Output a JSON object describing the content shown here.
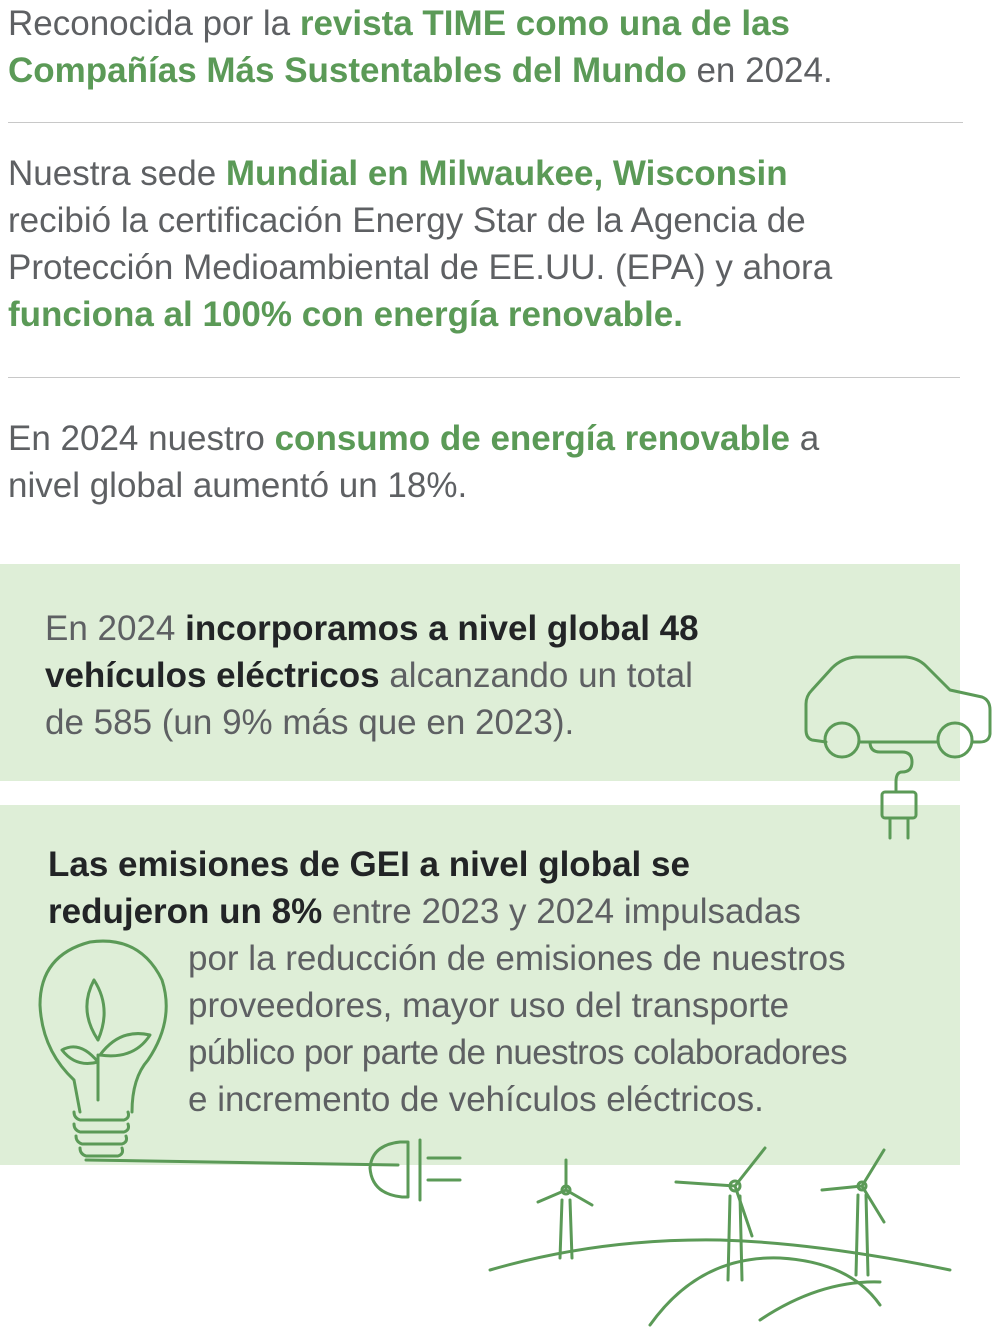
{
  "p1": {
    "a": "Reconocida por la ",
    "b": "revista TIME como una de las",
    "c": "Compañías Más Sustentables del Mundo",
    "d": " en 2024."
  },
  "p2": {
    "a": "Nuestra sede ",
    "b": "Mundial en Milwaukee, Wisconsin",
    "c": "recibió la certificación Energy Star de la Agencia de",
    "d": "Protección Medioambiental de EE.UU. (EPA) y ahora",
    "e": "funciona al 100% con energía renovable."
  },
  "p3": {
    "a": "En 2024 nuestro ",
    "b": "consumo de energía renovable",
    "c": " a",
    "d": "nivel global aumentó un 18%."
  },
  "box1": {
    "a": "En 2024 ",
    "b": "incorporamos a nivel global 48",
    "c": "vehículos eléctricos",
    "d": " alcanzando un total",
    "e": "de 585 (un 9% más que en 2023)."
  },
  "box2": {
    "a": "Las emisiones de GEI a nivel global se",
    "b": "redujeron un 8%",
    "c": " entre 2023 y 2024 impulsadas",
    "d": "por la reducción de emisiones de nuestros",
    "e": "proveedores, mayor uso del transporte",
    "f": "público por parte de nuestros colaboradores",
    "g": "e incremento de vehículos eléctricos."
  },
  "icons": [
    "electric-car-icon",
    "plug-icon",
    "lightbulb-leaf-icon",
    "wind-turbines-icon"
  ],
  "colors": {
    "accent": "#5b9a57",
    "box": "#deeed7",
    "text": "#5e6063",
    "bold": "#222426"
  }
}
